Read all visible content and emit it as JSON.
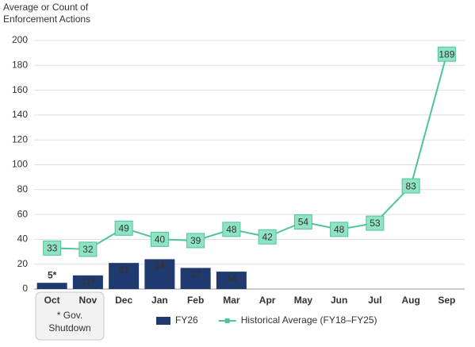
{
  "chart_data": {
    "type": "combo",
    "ylabel": [
      "Average or Count of",
      "Enforcement Actions"
    ],
    "categories": [
      "Oct",
      "Nov",
      "Dec",
      "Jan",
      "Feb",
      "Mar",
      "Apr",
      "May",
      "Jun",
      "Jul",
      "Aug",
      "Sep"
    ],
    "series": [
      {
        "name": "FY26",
        "type": "bar",
        "color": "#1f3a6e",
        "values": [
          5,
          11,
          21,
          24,
          17,
          14,
          null,
          null,
          null,
          null,
          null,
          null
        ],
        "value_labels": [
          "5*",
          "11*",
          "21",
          "24",
          "17",
          "14",
          null,
          null,
          null,
          null,
          null,
          null
        ]
      },
      {
        "name": "Historical Average (FY18–FY25)",
        "type": "line",
        "color": "#4fc39a",
        "marker_color": "#8fe3c3",
        "values": [
          33,
          32,
          49,
          40,
          39,
          48,
          42,
          54,
          48,
          53,
          83,
          189
        ]
      }
    ],
    "annotation": [
      "* Gov.",
      "Shutdown"
    ],
    "ylim": [
      0,
      200
    ],
    "yticks": [
      0,
      20,
      40,
      60,
      80,
      100,
      120,
      140,
      160,
      180,
      200
    ],
    "grid": true,
    "legend": "bottom"
  }
}
